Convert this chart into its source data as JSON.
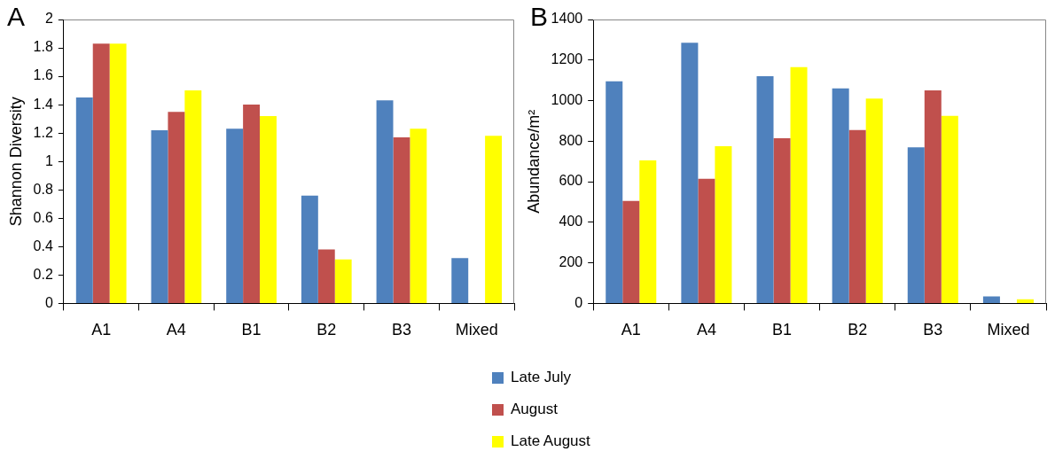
{
  "chart_data": [
    {
      "type": "bar",
      "title": "A",
      "ylabel": "Shannon Diversity",
      "categories": [
        "A1",
        "A4",
        "B1",
        "B2",
        "B3",
        "Mixed"
      ],
      "ylim": [
        0,
        2
      ],
      "yticks": [
        0,
        0.2,
        0.4,
        0.6,
        0.8,
        1,
        1.2,
        1.4,
        1.6,
        1.8,
        2
      ],
      "legend": "bottom",
      "series": [
        {
          "name": "Late July",
          "color": "#4f81bd",
          "values": [
            1.45,
            1.22,
            1.23,
            0.76,
            1.43,
            0.32
          ]
        },
        {
          "name": "August",
          "color": "#c0504d",
          "values": [
            1.83,
            1.35,
            1.4,
            0.38,
            1.17,
            null
          ]
        },
        {
          "name": "Late August",
          "color": "#ffff00",
          "values": [
            1.83,
            1.5,
            1.32,
            0.31,
            1.23,
            1.18
          ]
        }
      ]
    },
    {
      "type": "bar",
      "title": "B",
      "ylabel": "Abundance/m²",
      "categories": [
        "A1",
        "A4",
        "B1",
        "B2",
        "B3",
        "Mixed"
      ],
      "ylim": [
        0,
        1400
      ],
      "yticks": [
        0,
        200,
        400,
        600,
        800,
        1000,
        1200,
        1400
      ],
      "series": [
        {
          "color": "#4f81bd",
          "values": [
            1095,
            1285,
            1120,
            1060,
            770,
            35
          ]
        },
        {
          "color": "#c0504d",
          "values": [
            505,
            615,
            815,
            855,
            1050,
            null
          ]
        },
        {
          "color": "#ffff00",
          "values": [
            705,
            775,
            1165,
            1010,
            925,
            20
          ]
        }
      ]
    }
  ]
}
